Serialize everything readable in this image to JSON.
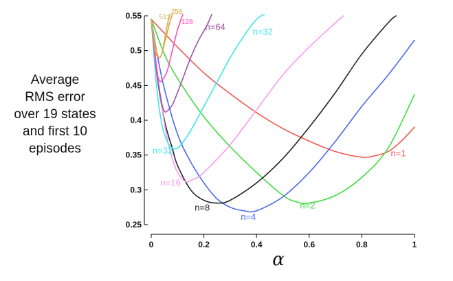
{
  "chart_data": {
    "type": "line",
    "title": "",
    "xlabel": "α",
    "ylabel_lines": [
      "Average",
      "RMS error",
      "over 19 states",
      "and first 10",
      "episodes"
    ],
    "xlim": [
      0,
      1
    ],
    "ylim": [
      0.25,
      0.55
    ],
    "x_ticks": [
      "0",
      "0.2",
      "0.4",
      "0.6",
      "0.8",
      "1"
    ],
    "y_ticks": [
      "0.25",
      "0.3",
      "0.35",
      "0.4",
      "0.45",
      "0.5",
      "0.55"
    ],
    "series": [
      {
        "name": "n=1",
        "label": "n=1",
        "color": "#f0584f",
        "x": [
          0,
          0.05,
          0.1,
          0.2,
          0.3,
          0.4,
          0.5,
          0.6,
          0.7,
          0.8,
          0.85,
          0.9,
          0.95,
          1.0
        ],
        "y": [
          0.545,
          0.525,
          0.505,
          0.468,
          0.438,
          0.411,
          0.388,
          0.37,
          0.355,
          0.347,
          0.349,
          0.355,
          0.37,
          0.39
        ]
      },
      {
        "name": "n=2",
        "label": "n=2",
        "color": "#3fdc3f",
        "x": [
          0,
          0.05,
          0.1,
          0.2,
          0.3,
          0.4,
          0.5,
          0.55,
          0.6,
          0.7,
          0.8,
          0.9,
          1.0
        ],
        "y": [
          0.545,
          0.495,
          0.46,
          0.405,
          0.362,
          0.325,
          0.292,
          0.283,
          0.281,
          0.292,
          0.318,
          0.36,
          0.437
        ]
      },
      {
        "name": "n=4",
        "label": "n=4",
        "color": "#4a69ec",
        "x": [
          0,
          0.025,
          0.05,
          0.1,
          0.15,
          0.2,
          0.25,
          0.3,
          0.35,
          0.4,
          0.5,
          0.6,
          0.7,
          0.8,
          0.9,
          1.0
        ],
        "y": [
          0.545,
          0.49,
          0.445,
          0.38,
          0.34,
          0.31,
          0.287,
          0.275,
          0.27,
          0.27,
          0.29,
          0.325,
          0.37,
          0.42,
          0.465,
          0.515
        ]
      },
      {
        "name": "n=8",
        "label": "n=8",
        "color": "#222222",
        "x": [
          0,
          0.02,
          0.05,
          0.08,
          0.1,
          0.15,
          0.2,
          0.25,
          0.3,
          0.4,
          0.5,
          0.6,
          0.7,
          0.8,
          0.9,
          0.93
        ],
        "y": [
          0.545,
          0.47,
          0.4,
          0.36,
          0.335,
          0.3,
          0.285,
          0.281,
          0.285,
          0.31,
          0.345,
          0.39,
          0.44,
          0.495,
          0.54,
          0.55
        ]
      },
      {
        "name": "n=16",
        "label": "n=16",
        "color": "#f79bf0",
        "x": [
          0,
          0.02,
          0.04,
          0.06,
          0.08,
          0.1,
          0.13,
          0.16,
          0.2,
          0.3,
          0.4,
          0.5,
          0.6,
          0.7,
          0.73
        ],
        "y": [
          0.545,
          0.48,
          0.42,
          0.375,
          0.345,
          0.325,
          0.312,
          0.315,
          0.325,
          0.365,
          0.415,
          0.465,
          0.505,
          0.54,
          0.55
        ]
      },
      {
        "name": "n=32",
        "label": "n=32",
        "color": "#3de8e8",
        "x": [
          0,
          0.02,
          0.04,
          0.06,
          0.08,
          0.1,
          0.12,
          0.15,
          0.2,
          0.25,
          0.3,
          0.35,
          0.4,
          0.43
        ],
        "y": [
          0.545,
          0.45,
          0.395,
          0.37,
          0.36,
          0.36,
          0.368,
          0.385,
          0.42,
          0.455,
          0.49,
          0.52,
          0.545,
          0.552
        ]
      },
      {
        "name": "n=64",
        "label": "n=64",
        "color": "#a050a8",
        "x": [
          0,
          0.02,
          0.04,
          0.05,
          0.06,
          0.08,
          0.1,
          0.12,
          0.15,
          0.18,
          0.21,
          0.23
        ],
        "y": [
          0.545,
          0.47,
          0.425,
          0.413,
          0.413,
          0.422,
          0.44,
          0.46,
          0.49,
          0.515,
          0.535,
          0.552
        ]
      },
      {
        "name": "n=128",
        "label": "128",
        "color": "#ff48c8",
        "x": [
          0,
          0.02,
          0.03,
          0.04,
          0.06,
          0.08,
          0.1,
          0.12
        ],
        "y": [
          0.545,
          0.475,
          0.458,
          0.457,
          0.47,
          0.5,
          0.53,
          0.552
        ]
      },
      {
        "name": "n=256",
        "label": "256",
        "color": "#f09a2a",
        "x": [
          0,
          0.015,
          0.03,
          0.04,
          0.05,
          0.06,
          0.07,
          0.08
        ],
        "y": [
          0.545,
          0.5,
          0.49,
          0.495,
          0.51,
          0.525,
          0.54,
          0.552
        ]
      },
      {
        "name": "n=512",
        "label": "512",
        "color": "#c8b45a",
        "x": [
          0,
          0.01,
          0.02,
          0.03,
          0.04,
          0.05,
          0.06,
          0.07
        ],
        "y": [
          0.545,
          0.52,
          0.5,
          0.49,
          0.495,
          0.515,
          0.535,
          0.552
        ]
      }
    ]
  }
}
